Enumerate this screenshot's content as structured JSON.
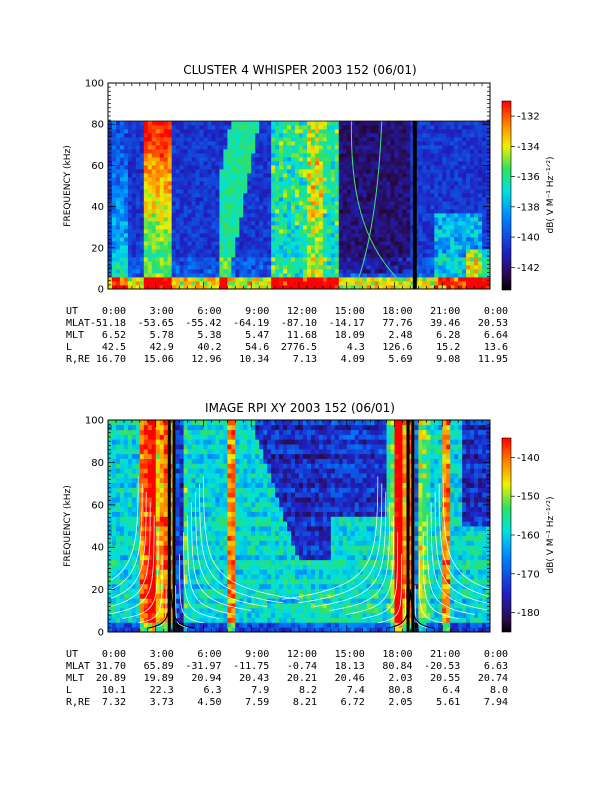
{
  "chart_data": [
    {
      "type": "heatmap",
      "title": "CLUSTER 4 WHISPER 2003 152 (06/01)",
      "ylabel": "FREQUENCY (kHz)",
      "ylim": [
        0,
        100
      ],
      "y_ticks": [
        "0",
        "20",
        "40",
        "60",
        "80",
        "100"
      ],
      "data_top_khz": 80,
      "colorbar": {
        "label": "dB( V M⁻¹ Hz⁻¹ᐟ²)",
        "range": [
          -143.5,
          -131
        ],
        "ticks": [
          "-132",
          "-134",
          "-136",
          "-138",
          "-140",
          "-142"
        ]
      },
      "ephemeris": {
        "rows": [
          "UT",
          "MLAT",
          "MLT",
          "L",
          "R,RE"
        ],
        "columns": [
          [
            "0:00",
            "-51.18",
            "6.52",
            "42.5",
            "16.70"
          ],
          [
            "3:00",
            "-53.65",
            "5.78",
            "42.9",
            "15.06"
          ],
          [
            "6:00",
            "-55.42",
            "5.38",
            "40.2",
            "12.96"
          ],
          [
            "9:00",
            "-64.19",
            "5.47",
            "54.6",
            "10.34"
          ],
          [
            "12:00",
            "-87.10",
            "11.68",
            "2776.5",
            "7.13"
          ],
          [
            "15:00",
            "-14.17",
            "18.09",
            "4.3",
            "4.09"
          ],
          [
            "18:00",
            "77.76",
            "2.48",
            "126.6",
            "5.69"
          ],
          [
            "21:00",
            "39.46",
            "6.28",
            "15.2",
            "9.08"
          ],
          [
            "0:00",
            "20.53",
            "6.64",
            "13.6",
            "11.95"
          ]
        ]
      }
    },
    {
      "type": "heatmap",
      "title": "IMAGE RPI XY 2003 152 (06/01)",
      "ylabel": "FREQUENCY (kHz)",
      "ylim": [
        0,
        100
      ],
      "y_ticks": [
        "0",
        "20",
        "40",
        "60",
        "80",
        "100"
      ],
      "colorbar": {
        "label": "dB( V M⁻¹ Hz⁻¹ᐟ²)",
        "range": [
          -185,
          -135
        ],
        "ticks": [
          "-140",
          "-150",
          "-160",
          "-170",
          "-180"
        ]
      },
      "ephemeris": {
        "rows": [
          "UT",
          "MLAT",
          "MLT",
          "L",
          "R,RE"
        ],
        "columns": [
          [
            "0:00",
            "31.70",
            "20.89",
            "10.1",
            "7.32"
          ],
          [
            "3:00",
            "65.89",
            "19.89",
            "22.3",
            "3.73"
          ],
          [
            "6:00",
            "-31.97",
            "20.94",
            "6.3",
            "4.50"
          ],
          [
            "9:00",
            "-11.75",
            "20.43",
            "7.9",
            "7.59"
          ],
          [
            "12:00",
            "-0.74",
            "20.21",
            "8.2",
            "8.21"
          ],
          [
            "15:00",
            "18.13",
            "20.46",
            "7.4",
            "6.72"
          ],
          [
            "18:00",
            "80.84",
            "2.03",
            "80.8",
            "2.05"
          ],
          [
            "21:00",
            "-20.53",
            "20.55",
            "6.4",
            "5.61"
          ],
          [
            "0:00",
            "6.63",
            "20.74",
            "8.0",
            "7.94"
          ]
        ]
      }
    }
  ]
}
